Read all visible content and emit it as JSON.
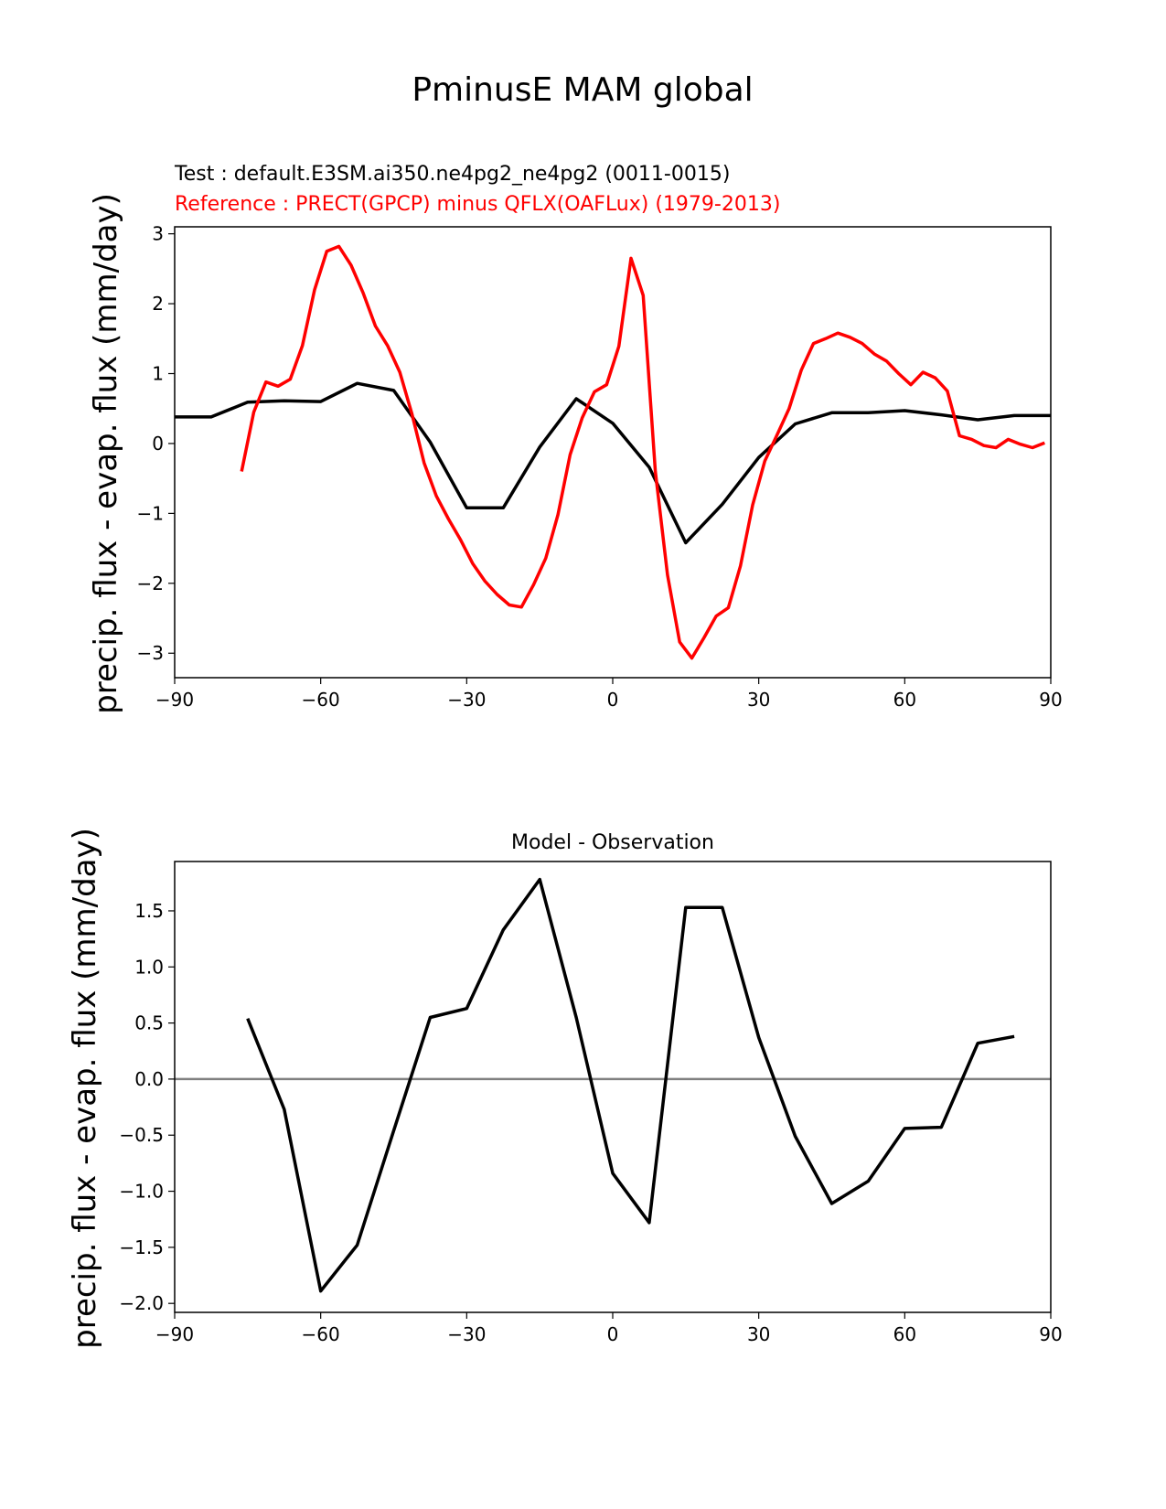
{
  "suptitle": "PminusE MAM global",
  "chart_data": [
    {
      "type": "line",
      "legend": [
        {
          "text": "Test : default.E3SM.ai350.ne4pg2_ne4pg2 (0011-0015)",
          "color": "#000000"
        },
        {
          "text": "Reference : PRECT(GPCP) minus QFLX(OAFLux) (1979-2013)",
          "color": "#ff0000"
        }
      ],
      "ylabel": "precip. flux - evap. flux (mm/day)",
      "xlim": [
        -90,
        90
      ],
      "ylim": [
        -3.35,
        3.1
      ],
      "xticks": [
        -90,
        -60,
        -30,
        0,
        30,
        60,
        90
      ],
      "xtick_labels": [
        "−90",
        "−60",
        "−30",
        "0",
        "30",
        "60",
        "90"
      ],
      "yticks": [
        -3,
        -2,
        -1,
        0,
        1,
        2,
        3
      ],
      "ytick_labels": [
        "−3",
        "−2",
        "−1",
        "0",
        "1",
        "2",
        "3"
      ],
      "series": [
        {
          "color": "#000000",
          "x": [
            -90,
            -82.5,
            -75,
            -67.5,
            -60,
            -52.5,
            -45,
            -37.5,
            -30,
            -22.5,
            -15,
            -7.5,
            0,
            7.5,
            15,
            22.5,
            30,
            37.5,
            45,
            52.5,
            60,
            67.5,
            75,
            82.5,
            90
          ],
          "y": [
            0.38,
            0.38,
            0.59,
            0.61,
            0.6,
            0.86,
            0.76,
            0.02,
            -0.92,
            -0.92,
            -0.05,
            0.64,
            0.29,
            -0.34,
            -1.42,
            -0.87,
            -0.2,
            0.28,
            0.44,
            0.44,
            0.47,
            0.41,
            0.34,
            0.4,
            0.4
          ]
        },
        {
          "color": "#ff0000",
          "x": [
            -76.25,
            -73.75,
            -71.25,
            -68.75,
            -66.25,
            -63.75,
            -61.25,
            -58.75,
            -56.25,
            -53.75,
            -51.25,
            -48.75,
            -46.25,
            -43.75,
            -41.25,
            -38.75,
            -36.25,
            -33.75,
            -31.25,
            -28.75,
            -26.25,
            -23.75,
            -21.25,
            -18.75,
            -16.25,
            -13.75,
            -11.25,
            -8.75,
            -6.25,
            -3.75,
            -1.25,
            1.25,
            3.75,
            6.25,
            8.75,
            11.25,
            13.75,
            16.25,
            18.75,
            21.25,
            23.75,
            26.25,
            28.75,
            31.25,
            33.75,
            36.25,
            38.75,
            41.25,
            43.75,
            46.25,
            48.75,
            51.25,
            53.75,
            56.25,
            58.75,
            61.25,
            63.75,
            66.25,
            68.75,
            71.25,
            73.75,
            76.25,
            78.75,
            81.25,
            83.75,
            86.25,
            88.75
          ],
          "y": [
            -0.4,
            0.45,
            0.88,
            0.82,
            0.92,
            1.4,
            2.2,
            2.75,
            2.82,
            2.55,
            2.15,
            1.68,
            1.4,
            1.02,
            0.42,
            -0.28,
            -0.75,
            -1.08,
            -1.38,
            -1.72,
            -1.97,
            -2.16,
            -2.31,
            -2.34,
            -2.02,
            -1.64,
            -1.02,
            -0.16,
            0.37,
            0.74,
            0.84,
            1.39,
            2.65,
            2.12,
            -0.4,
            -1.88,
            -2.84,
            -3.07,
            -2.78,
            -2.47,
            -2.35,
            -1.75,
            -0.88,
            -0.25,
            0.12,
            0.5,
            1.05,
            1.43,
            1.5,
            1.58,
            1.52,
            1.43,
            1.28,
            1.18,
            1.0,
            0.84,
            1.02,
            0.94,
            0.75,
            0.11,
            0.06,
            -0.03,
            -0.06,
            0.06,
            -0.01,
            -0.06,
            0.01
          ]
        }
      ]
    },
    {
      "type": "line",
      "title": "Model - Observation",
      "ylabel": "precip. flux - evap. flux (mm/day)",
      "xlim": [
        -90,
        90
      ],
      "ylim": [
        -2.08,
        1.94
      ],
      "xticks": [
        -90,
        -60,
        -30,
        0,
        30,
        60,
        90
      ],
      "xtick_labels": [
        "−90",
        "−60",
        "−30",
        "0",
        "30",
        "60",
        "90"
      ],
      "yticks": [
        -2.0,
        -1.5,
        -1.0,
        -0.5,
        0.0,
        0.5,
        1.0,
        1.5
      ],
      "ytick_labels": [
        "−2.0",
        "−1.5",
        "−1.0",
        "−0.5",
        "0.0",
        "0.5",
        "1.0",
        "1.5"
      ],
      "zero_line_color": "#808080",
      "series": [
        {
          "color": "#000000",
          "x": [
            -75,
            -67.5,
            -60,
            -52.5,
            -45,
            -37.5,
            -30,
            -22.5,
            -15,
            -7.5,
            0,
            7.5,
            15,
            22.5,
            30,
            37.5,
            45,
            52.5,
            60,
            67.5,
            75,
            82.5
          ],
          "y": [
            0.54,
            -0.27,
            -1.89,
            -1.48,
            -0.46,
            0.55,
            0.63,
            1.33,
            1.78,
            0.55,
            -0.84,
            -1.28,
            1.53,
            1.53,
            0.37,
            -0.51,
            -1.11,
            -0.91,
            -0.44,
            -0.43,
            0.32,
            0.38
          ]
        }
      ]
    }
  ]
}
